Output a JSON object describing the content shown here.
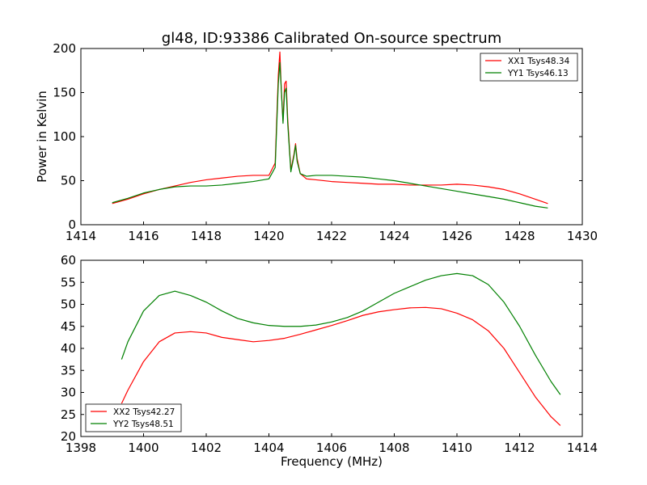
{
  "title": "gl48, ID:93386 Calibrated On-source spectrum",
  "colors": {
    "xx": "#ff0000",
    "yy": "#008000",
    "axes": "#000000",
    "background": "#ffffff"
  },
  "chart_data": [
    {
      "type": "line",
      "title": "gl48, ID:93386 Calibrated On-source spectrum",
      "xlabel": "",
      "ylabel": "Power in Kelvin",
      "xlim": [
        1414,
        1430
      ],
      "ylim": [
        0,
        200
      ],
      "xticks": [
        "1414",
        "1416",
        "1418",
        "1420",
        "1422",
        "1424",
        "1426",
        "1428",
        "1430"
      ],
      "yticks": [
        "0",
        "50",
        "100",
        "150",
        "200"
      ],
      "grid": false,
      "legend": "top-right",
      "series": [
        {
          "name": "XX1 Tsys48.34",
          "color": "#ff0000",
          "x": [
            1415.0,
            1415.5,
            1416.0,
            1416.5,
            1417.0,
            1417.5,
            1418.0,
            1418.5,
            1419.0,
            1419.5,
            1420.0,
            1420.2,
            1420.3,
            1420.35,
            1420.4,
            1420.45,
            1420.5,
            1420.55,
            1420.6,
            1420.7,
            1420.8,
            1420.85,
            1420.9,
            1421.0,
            1421.2,
            1421.5,
            1422.0,
            1422.5,
            1423.0,
            1423.5,
            1424.0,
            1424.5,
            1425.0,
            1425.5,
            1426.0,
            1426.5,
            1427.0,
            1427.5,
            1428.0,
            1428.5,
            1428.9
          ],
          "y": [
            24,
            29,
            35,
            40,
            44,
            48,
            51,
            53,
            55,
            56,
            56,
            70,
            170,
            196,
            150,
            118,
            160,
            163,
            120,
            62,
            80,
            92,
            75,
            58,
            52,
            51,
            49,
            48,
            47,
            46,
            46,
            45,
            45,
            45,
            46,
            45,
            43,
            40,
            35,
            29,
            24
          ]
        },
        {
          "name": "YY1 Tsys46.13",
          "color": "#008000",
          "x": [
            1415.0,
            1415.5,
            1416.0,
            1416.5,
            1417.0,
            1417.5,
            1418.0,
            1418.5,
            1419.0,
            1419.5,
            1420.0,
            1420.2,
            1420.3,
            1420.35,
            1420.4,
            1420.45,
            1420.5,
            1420.55,
            1420.6,
            1420.7,
            1420.8,
            1420.85,
            1420.9,
            1421.0,
            1421.2,
            1421.5,
            1422.0,
            1422.5,
            1423.0,
            1423.5,
            1424.0,
            1424.5,
            1425.0,
            1425.5,
            1426.0,
            1426.5,
            1427.0,
            1427.5,
            1428.0,
            1428.5,
            1428.9
          ],
          "y": [
            25,
            30,
            36,
            40,
            43,
            44,
            44,
            45,
            47,
            49,
            52,
            65,
            160,
            184,
            150,
            115,
            150,
            155,
            115,
            60,
            78,
            90,
            72,
            58,
            55,
            56,
            56,
            55,
            54,
            52,
            50,
            47,
            44,
            41,
            38,
            35,
            32,
            29,
            25,
            21,
            19
          ]
        }
      ]
    },
    {
      "type": "line",
      "title": "",
      "xlabel": "Frequency (MHz)",
      "ylabel": "",
      "xlim": [
        1398,
        1414
      ],
      "ylim": [
        20,
        60
      ],
      "xticks": [
        "1398",
        "1400",
        "1402",
        "1404",
        "1406",
        "1408",
        "1410",
        "1412",
        "1414"
      ],
      "yticks": [
        "20",
        "25",
        "30",
        "35",
        "40",
        "45",
        "50",
        "55",
        "60"
      ],
      "grid": false,
      "legend": "bottom-left",
      "series": [
        {
          "name": "XX2 Tsys42.27",
          "color": "#ff0000",
          "x": [
            1399.3,
            1399.5,
            1400.0,
            1400.5,
            1401.0,
            1401.5,
            1402.0,
            1402.5,
            1403.0,
            1403.5,
            1404.0,
            1404.5,
            1405.0,
            1405.5,
            1406.0,
            1406.5,
            1407.0,
            1407.5,
            1408.0,
            1408.5,
            1409.0,
            1409.5,
            1410.0,
            1410.5,
            1411.0,
            1411.5,
            1412.0,
            1412.5,
            1413.0,
            1413.3
          ],
          "y": [
            27.5,
            30.5,
            37,
            41.5,
            43.5,
            43.8,
            43.5,
            42.5,
            42,
            41.5,
            41.8,
            42.3,
            43.2,
            44.2,
            45.2,
            46.3,
            47.5,
            48.3,
            48.8,
            49.2,
            49.3,
            49,
            48,
            46.5,
            44,
            40,
            34.5,
            29,
            24.5,
            22.5
          ]
        },
        {
          "name": "YY2 Tsys48.51",
          "color": "#008000",
          "x": [
            1399.3,
            1399.5,
            1400.0,
            1400.5,
            1401.0,
            1401.5,
            1402.0,
            1402.5,
            1403.0,
            1403.5,
            1404.0,
            1404.5,
            1405.0,
            1405.5,
            1406.0,
            1406.5,
            1407.0,
            1407.5,
            1408.0,
            1408.5,
            1409.0,
            1409.5,
            1410.0,
            1410.5,
            1411.0,
            1411.5,
            1412.0,
            1412.5,
            1413.0,
            1413.3
          ],
          "y": [
            37.5,
            41.5,
            48.5,
            52,
            53,
            52,
            50.5,
            48.5,
            46.8,
            45.8,
            45.2,
            45,
            45,
            45.3,
            46,
            47,
            48.5,
            50.5,
            52.5,
            54,
            55.5,
            56.5,
            57,
            56.5,
            54.5,
            50.5,
            45,
            38.5,
            32.5,
            29.5
          ]
        }
      ]
    }
  ]
}
